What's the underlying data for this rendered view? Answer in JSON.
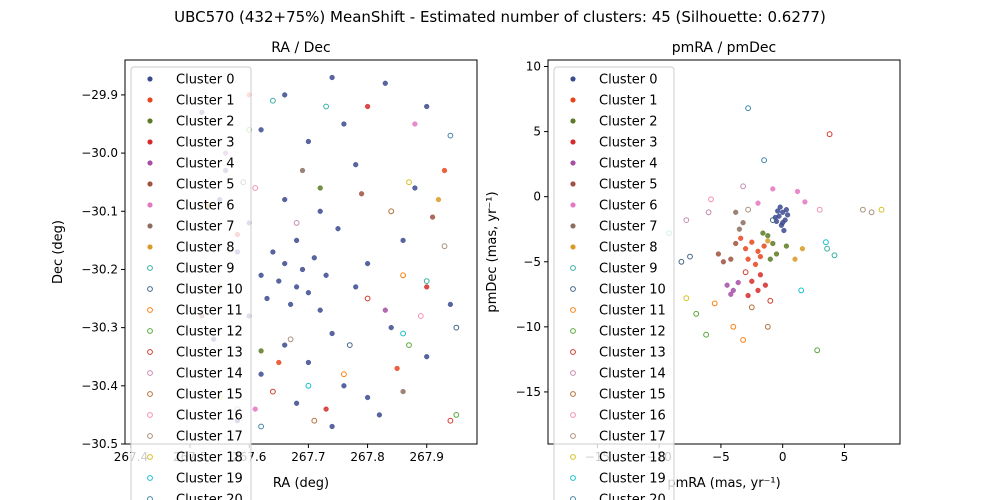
{
  "figure": {
    "suptitle": "UBC570 (432+75%) MeanShift - Estimated number of clusters: 45 (Silhouette: 0.6277)"
  },
  "palette": [
    "#3b4a8f",
    "#e8451e",
    "#5a7a24",
    "#d62a2a",
    "#a44ea6",
    "#a0503e",
    "#e377c2",
    "#8c6d5e",
    "#d99a26",
    "#35b0a0",
    "#41668a",
    "#ff7f0e",
    "#58a83a",
    "#d33a2a",
    "#c58cb2",
    "#b0703a",
    "#f48fb1",
    "#a8907a",
    "#d4c020",
    "#17becf",
    "#3f86a6"
  ],
  "chart_data": [
    {
      "type": "scatter",
      "title": "RA / Dec",
      "xlabel": "RA (deg)",
      "ylabel": "Dec (deg)",
      "xlim": [
        267.39,
        267.985
      ],
      "ylim": [
        -30.5,
        -29.84
      ],
      "xticks": [
        267.4,
        267.5,
        267.6,
        267.7,
        267.8,
        267.9
      ],
      "yticks": [
        -29.9,
        -30.0,
        -30.1,
        -30.2,
        -30.3,
        -30.4,
        -30.5
      ],
      "xtick_labels": [
        "267.4",
        "267.5",
        "267.6",
        "267.7",
        "267.8",
        "267.9"
      ],
      "ytick_labels": [
        "−29.9",
        "−30.0",
        "−30.1",
        "−30.2",
        "−30.3",
        "−30.4",
        "−30.5"
      ],
      "legend_position": "top-left",
      "legend": [
        "Cluster 0",
        "Cluster 1",
        "Cluster 2",
        "Cluster 3",
        "Cluster 4",
        "Cluster 5",
        "Cluster 6",
        "Cluster 7",
        "Cluster 8",
        "Cluster 9",
        "Cluster 10",
        "Cluster 11",
        "Cluster 12",
        "Cluster 13",
        "Cluster 14",
        "Cluster 15",
        "Cluster 16",
        "Cluster 17",
        "Cluster 18",
        "Cluster 19",
        "Cluster 20"
      ],
      "points": [
        {
          "c": 0,
          "x": 267.52,
          "y": -29.93
        },
        {
          "c": 0,
          "x": 267.74,
          "y": -29.87
        },
        {
          "c": 0,
          "x": 267.83,
          "y": -29.88
        },
        {
          "c": 0,
          "x": 267.9,
          "y": -29.92
        },
        {
          "c": 0,
          "x": 267.62,
          "y": -29.96
        },
        {
          "c": 0,
          "x": 267.7,
          "y": -29.98
        },
        {
          "c": 0,
          "x": 267.56,
          "y": -30.03
        },
        {
          "c": 0,
          "x": 267.78,
          "y": -30.02
        },
        {
          "c": 0,
          "x": 267.88,
          "y": -30.06
        },
        {
          "c": 0,
          "x": 267.66,
          "y": -30.08
        },
        {
          "c": 0,
          "x": 267.72,
          "y": -30.1
        },
        {
          "c": 0,
          "x": 267.6,
          "y": -30.12
        },
        {
          "c": 0,
          "x": 267.75,
          "y": -30.13
        },
        {
          "c": 0,
          "x": 267.68,
          "y": -30.15
        },
        {
          "c": 0,
          "x": 267.64,
          "y": -30.17
        },
        {
          "c": 0,
          "x": 267.71,
          "y": -30.18
        },
        {
          "c": 0,
          "x": 267.66,
          "y": -30.19
        },
        {
          "c": 0,
          "x": 267.69,
          "y": -30.2
        },
        {
          "c": 0,
          "x": 267.62,
          "y": -30.21
        },
        {
          "c": 0,
          "x": 267.73,
          "y": -30.21
        },
        {
          "c": 0,
          "x": 267.65,
          "y": -30.22
        },
        {
          "c": 0,
          "x": 267.68,
          "y": -30.23
        },
        {
          "c": 0,
          "x": 267.7,
          "y": -30.24
        },
        {
          "c": 0,
          "x": 267.63,
          "y": -30.25
        },
        {
          "c": 0,
          "x": 267.67,
          "y": -30.26
        },
        {
          "c": 0,
          "x": 267.72,
          "y": -30.27
        },
        {
          "c": 0,
          "x": 267.6,
          "y": -30.28
        },
        {
          "c": 0,
          "x": 267.78,
          "y": -30.23
        },
        {
          "c": 0,
          "x": 267.8,
          "y": -30.19
        },
        {
          "c": 0,
          "x": 267.58,
          "y": -30.17
        },
        {
          "c": 0,
          "x": 267.74,
          "y": -30.31
        },
        {
          "c": 0,
          "x": 267.66,
          "y": -30.33
        },
        {
          "c": 0,
          "x": 267.7,
          "y": -30.36
        },
        {
          "c": 0,
          "x": 267.62,
          "y": -30.38
        },
        {
          "c": 0,
          "x": 267.76,
          "y": -30.4
        },
        {
          "c": 0,
          "x": 267.68,
          "y": -30.43
        },
        {
          "c": 0,
          "x": 267.82,
          "y": -30.45
        },
        {
          "c": 0,
          "x": 267.74,
          "y": -30.47
        },
        {
          "c": 0,
          "x": 267.58,
          "y": -30.46
        },
        {
          "c": 0,
          "x": 267.9,
          "y": -30.35
        },
        {
          "c": 0,
          "x": 267.94,
          "y": -30.26
        },
        {
          "c": 0,
          "x": 267.86,
          "y": -30.15
        },
        {
          "c": 0,
          "x": 267.54,
          "y": -30.32
        },
        {
          "c": 0,
          "x": 267.55,
          "y": -30.08
        },
        {
          "c": 0,
          "x": 267.84,
          "y": -30.3
        },
        {
          "c": 0,
          "x": 267.8,
          "y": -30.42
        },
        {
          "c": 0,
          "x": 267.66,
          "y": -29.9
        },
        {
          "c": 0,
          "x": 267.76,
          "y": -29.95
        },
        {
          "c": 1,
          "x": 267.6,
          "y": -29.9
        },
        {
          "c": 1,
          "x": 267.93,
          "y": -30.03
        },
        {
          "c": 1,
          "x": 267.85,
          "y": -30.37
        },
        {
          "c": 1,
          "x": 267.65,
          "y": -30.36
        },
        {
          "c": 2,
          "x": 267.55,
          "y": -30.23
        },
        {
          "c": 2,
          "x": 267.72,
          "y": -30.06
        },
        {
          "c": 2,
          "x": 267.62,
          "y": -30.34
        },
        {
          "c": 3,
          "x": 267.8,
          "y": -29.92
        },
        {
          "c": 3,
          "x": 267.9,
          "y": -30.23
        },
        {
          "c": 3,
          "x": 267.58,
          "y": -30.14
        },
        {
          "c": 3,
          "x": 267.73,
          "y": -30.44
        },
        {
          "c": 4,
          "x": 267.56,
          "y": -30.0
        },
        {
          "c": 4,
          "x": 267.83,
          "y": -30.27
        },
        {
          "c": 5,
          "x": 267.52,
          "y": -30.28
        },
        {
          "c": 5,
          "x": 267.91,
          "y": -30.11
        },
        {
          "c": 5,
          "x": 267.79,
          "y": -30.07
        },
        {
          "c": 6,
          "x": 267.88,
          "y": -29.95
        },
        {
          "c": 6,
          "x": 267.61,
          "y": -30.44
        },
        {
          "c": 7,
          "x": 267.69,
          "y": -30.03
        },
        {
          "c": 7,
          "x": 267.86,
          "y": -30.41
        },
        {
          "c": 8,
          "x": 267.92,
          "y": -30.08
        },
        {
          "c": 8,
          "x": 267.53,
          "y": -30.09
        },
        {
          "c": 9,
          "x": 267.64,
          "y": -29.91
        },
        {
          "c": 9,
          "x": 267.73,
          "y": -29.92
        },
        {
          "c": 9,
          "x": 267.9,
          "y": -30.22
        },
        {
          "c": 10,
          "x": 267.59,
          "y": -30.05
        },
        {
          "c": 10,
          "x": 267.77,
          "y": -30.33
        },
        {
          "c": 10,
          "x": 267.95,
          "y": -30.3
        },
        {
          "c": 11,
          "x": 267.76,
          "y": -30.38
        },
        {
          "c": 11,
          "x": 267.86,
          "y": -30.21
        },
        {
          "c": 12,
          "x": 267.6,
          "y": -29.96
        },
        {
          "c": 12,
          "x": 267.87,
          "y": -30.33
        },
        {
          "c": 12,
          "x": 267.95,
          "y": -30.45
        },
        {
          "c": 13,
          "x": 267.8,
          "y": -30.25
        },
        {
          "c": 13,
          "x": 267.64,
          "y": -30.41
        },
        {
          "c": 13,
          "x": 267.94,
          "y": -30.46
        },
        {
          "c": 14,
          "x": 267.68,
          "y": -30.12
        },
        {
          "c": 14,
          "x": 267.58,
          "y": -30.44
        },
        {
          "c": 15,
          "x": 267.84,
          "y": -30.1
        },
        {
          "c": 15,
          "x": 267.71,
          "y": -30.46
        },
        {
          "c": 16,
          "x": 267.89,
          "y": -30.28
        },
        {
          "c": 16,
          "x": 267.61,
          "y": -30.06
        },
        {
          "c": 17,
          "x": 267.93,
          "y": -30.16
        },
        {
          "c": 17,
          "x": 267.67,
          "y": -30.32
        },
        {
          "c": 18,
          "x": 267.55,
          "y": -30.42
        },
        {
          "c": 18,
          "x": 267.87,
          "y": -30.05
        },
        {
          "c": 19,
          "x": 267.86,
          "y": -30.31
        },
        {
          "c": 19,
          "x": 267.7,
          "y": -30.4
        },
        {
          "c": 20,
          "x": 267.62,
          "y": -30.47
        },
        {
          "c": 20,
          "x": 267.94,
          "y": -29.97
        }
      ]
    },
    {
      "type": "scatter",
      "title": "pmRA / pmDec",
      "xlabel": "pmRA (mas, yr⁻¹)",
      "ylabel": "pmDec (mas, yr⁻¹)",
      "xlim": [
        -19,
        9.5
      ],
      "ylim": [
        -19,
        10.5
      ],
      "xticks": [
        -15,
        -10,
        -5,
        0,
        5
      ],
      "yticks": [
        10,
        5,
        0,
        -5,
        -10,
        -15
      ],
      "xtick_labels": [
        "−15",
        "−10",
        "−5",
        "0",
        "5"
      ],
      "ytick_labels": [
        "10",
        "5",
        "0",
        "−5",
        "−10",
        "−15"
      ],
      "legend_position": "top-left",
      "legend": [
        "Cluster 0",
        "Cluster 1",
        "Cluster 2",
        "Cluster 3",
        "Cluster 4",
        "Cluster 5",
        "Cluster 6",
        "Cluster 7",
        "Cluster 8",
        "Cluster 9",
        "Cluster 10",
        "Cluster 11",
        "Cluster 12",
        "Cluster 13",
        "Cluster 14",
        "Cluster 15",
        "Cluster 16",
        "Cluster 17",
        "Cluster 18",
        "Cluster 19",
        "Cluster 20"
      ],
      "points": [
        {
          "c": 0,
          "x": 0.0,
          "y": -1.2
        },
        {
          "c": 0,
          "x": -0.3,
          "y": -1.5
        },
        {
          "c": 0,
          "x": 0.2,
          "y": -1.8
        },
        {
          "c": 0,
          "x": -0.1,
          "y": -2.2
        },
        {
          "c": 0,
          "x": 0.3,
          "y": -1.0
        },
        {
          "c": 0,
          "x": -0.5,
          "y": -1.9
        },
        {
          "c": 0,
          "x": 0.1,
          "y": -2.6
        },
        {
          "c": 0,
          "x": -0.2,
          "y": -0.8
        },
        {
          "c": 0,
          "x": 0.4,
          "y": -1.4
        },
        {
          "c": 0,
          "x": -0.4,
          "y": -1.1
        },
        {
          "c": 0,
          "x": 0.0,
          "y": -2.0
        },
        {
          "c": 0,
          "x": -0.6,
          "y": -1.6
        },
        {
          "c": 1,
          "x": -2.5,
          "y": -3.5
        },
        {
          "c": 1,
          "x": -2.0,
          "y": -4.2
        },
        {
          "c": 1,
          "x": -3.0,
          "y": -4.0
        },
        {
          "c": 1,
          "x": -1.5,
          "y": -3.8
        },
        {
          "c": 1,
          "x": -2.8,
          "y": -4.8
        },
        {
          "c": 1,
          "x": -2.2,
          "y": -5.2
        },
        {
          "c": 1,
          "x": -3.4,
          "y": -3.2
        },
        {
          "c": 1,
          "x": -1.8,
          "y": -4.6
        },
        {
          "c": 2,
          "x": -1.2,
          "y": -3.0
        },
        {
          "c": 2,
          "x": -0.8,
          "y": -3.6
        },
        {
          "c": 2,
          "x": -1.6,
          "y": -2.8
        },
        {
          "c": 2,
          "x": -0.5,
          "y": -4.4
        },
        {
          "c": 2,
          "x": 0.3,
          "y": -3.8
        },
        {
          "c": 2,
          "x": -1.0,
          "y": -4.8
        },
        {
          "c": 3,
          "x": -1.8,
          "y": -6.0
        },
        {
          "c": 3,
          "x": -2.5,
          "y": -6.5
        },
        {
          "c": 3,
          "x": -2.0,
          "y": -7.2
        },
        {
          "c": 3,
          "x": -1.4,
          "y": -6.8
        },
        {
          "c": 3,
          "x": -2.8,
          "y": -7.6
        },
        {
          "c": 4,
          "x": -4.5,
          "y": -6.8
        },
        {
          "c": 4,
          "x": -4.0,
          "y": -7.2
        },
        {
          "c": 4,
          "x": -3.6,
          "y": -6.6
        },
        {
          "c": 4,
          "x": -4.2,
          "y": -7.5
        },
        {
          "c": 5,
          "x": -4.8,
          "y": -5.0
        },
        {
          "c": 5,
          "x": -5.2,
          "y": -4.4
        },
        {
          "c": 5,
          "x": -4.2,
          "y": -4.8
        },
        {
          "c": 5,
          "x": -3.8,
          "y": -3.6
        },
        {
          "c": 6,
          "x": -0.8,
          "y": 0.6
        },
        {
          "c": 6,
          "x": 1.2,
          "y": 0.4
        },
        {
          "c": 6,
          "x": 1.8,
          "y": -0.4
        },
        {
          "c": 6,
          "x": -2.0,
          "y": -0.5
        },
        {
          "c": 7,
          "x": -3.2,
          "y": -2.0
        },
        {
          "c": 7,
          "x": -3.8,
          "y": -1.2
        },
        {
          "c": 7,
          "x": -3.5,
          "y": -2.5
        },
        {
          "c": 8,
          "x": 1.0,
          "y": -4.8
        },
        {
          "c": 8,
          "x": 1.6,
          "y": -4.0
        },
        {
          "c": 8,
          "x": -1.2,
          "y": -3.4
        },
        {
          "c": 9,
          "x": -9.2,
          "y": -2.8
        },
        {
          "c": 9,
          "x": 3.6,
          "y": -4.0
        },
        {
          "c": 9,
          "x": 4.2,
          "y": -4.5
        },
        {
          "c": 10,
          "x": -7.5,
          "y": -4.6
        },
        {
          "c": 10,
          "x": -8.2,
          "y": -5.0
        },
        {
          "c": 10,
          "x": -0.8,
          "y": -1.8
        },
        {
          "c": 11,
          "x": -4.0,
          "y": -10.0
        },
        {
          "c": 11,
          "x": -3.2,
          "y": -11.0
        },
        {
          "c": 11,
          "x": -5.5,
          "y": -8.2
        },
        {
          "c": 12,
          "x": -7.0,
          "y": -9.0
        },
        {
          "c": 12,
          "x": -6.2,
          "y": -10.6
        },
        {
          "c": 12,
          "x": 2.8,
          "y": -11.8
        },
        {
          "c": 13,
          "x": -3.0,
          "y": -5.8
        },
        {
          "c": 13,
          "x": -1.0,
          "y": -8.0
        },
        {
          "c": 13,
          "x": 3.8,
          "y": 4.8
        },
        {
          "c": 14,
          "x": -7.8,
          "y": -1.8
        },
        {
          "c": 14,
          "x": -6.0,
          "y": -1.2
        },
        {
          "c": 14,
          "x": -3.2,
          "y": 0.8
        },
        {
          "c": 15,
          "x": -2.5,
          "y": -8.5
        },
        {
          "c": 15,
          "x": -1.2,
          "y": -10.0
        },
        {
          "c": 16,
          "x": 3.0,
          "y": -1.0
        },
        {
          "c": 16,
          "x": -5.8,
          "y": -0.2
        },
        {
          "c": 17,
          "x": 6.5,
          "y": -1.0
        },
        {
          "c": 17,
          "x": 7.2,
          "y": -1.2
        },
        {
          "c": 17,
          "x": -2.8,
          "y": -1.0
        },
        {
          "c": 18,
          "x": -7.8,
          "y": -7.8
        },
        {
          "c": 18,
          "x": 8.0,
          "y": -1.0
        },
        {
          "c": 19,
          "x": 1.5,
          "y": -7.2
        },
        {
          "c": 19,
          "x": 3.5,
          "y": -3.5
        },
        {
          "c": 20,
          "x": -2.8,
          "y": 6.8
        },
        {
          "c": 20,
          "x": -1.5,
          "y": 2.8
        }
      ]
    }
  ]
}
